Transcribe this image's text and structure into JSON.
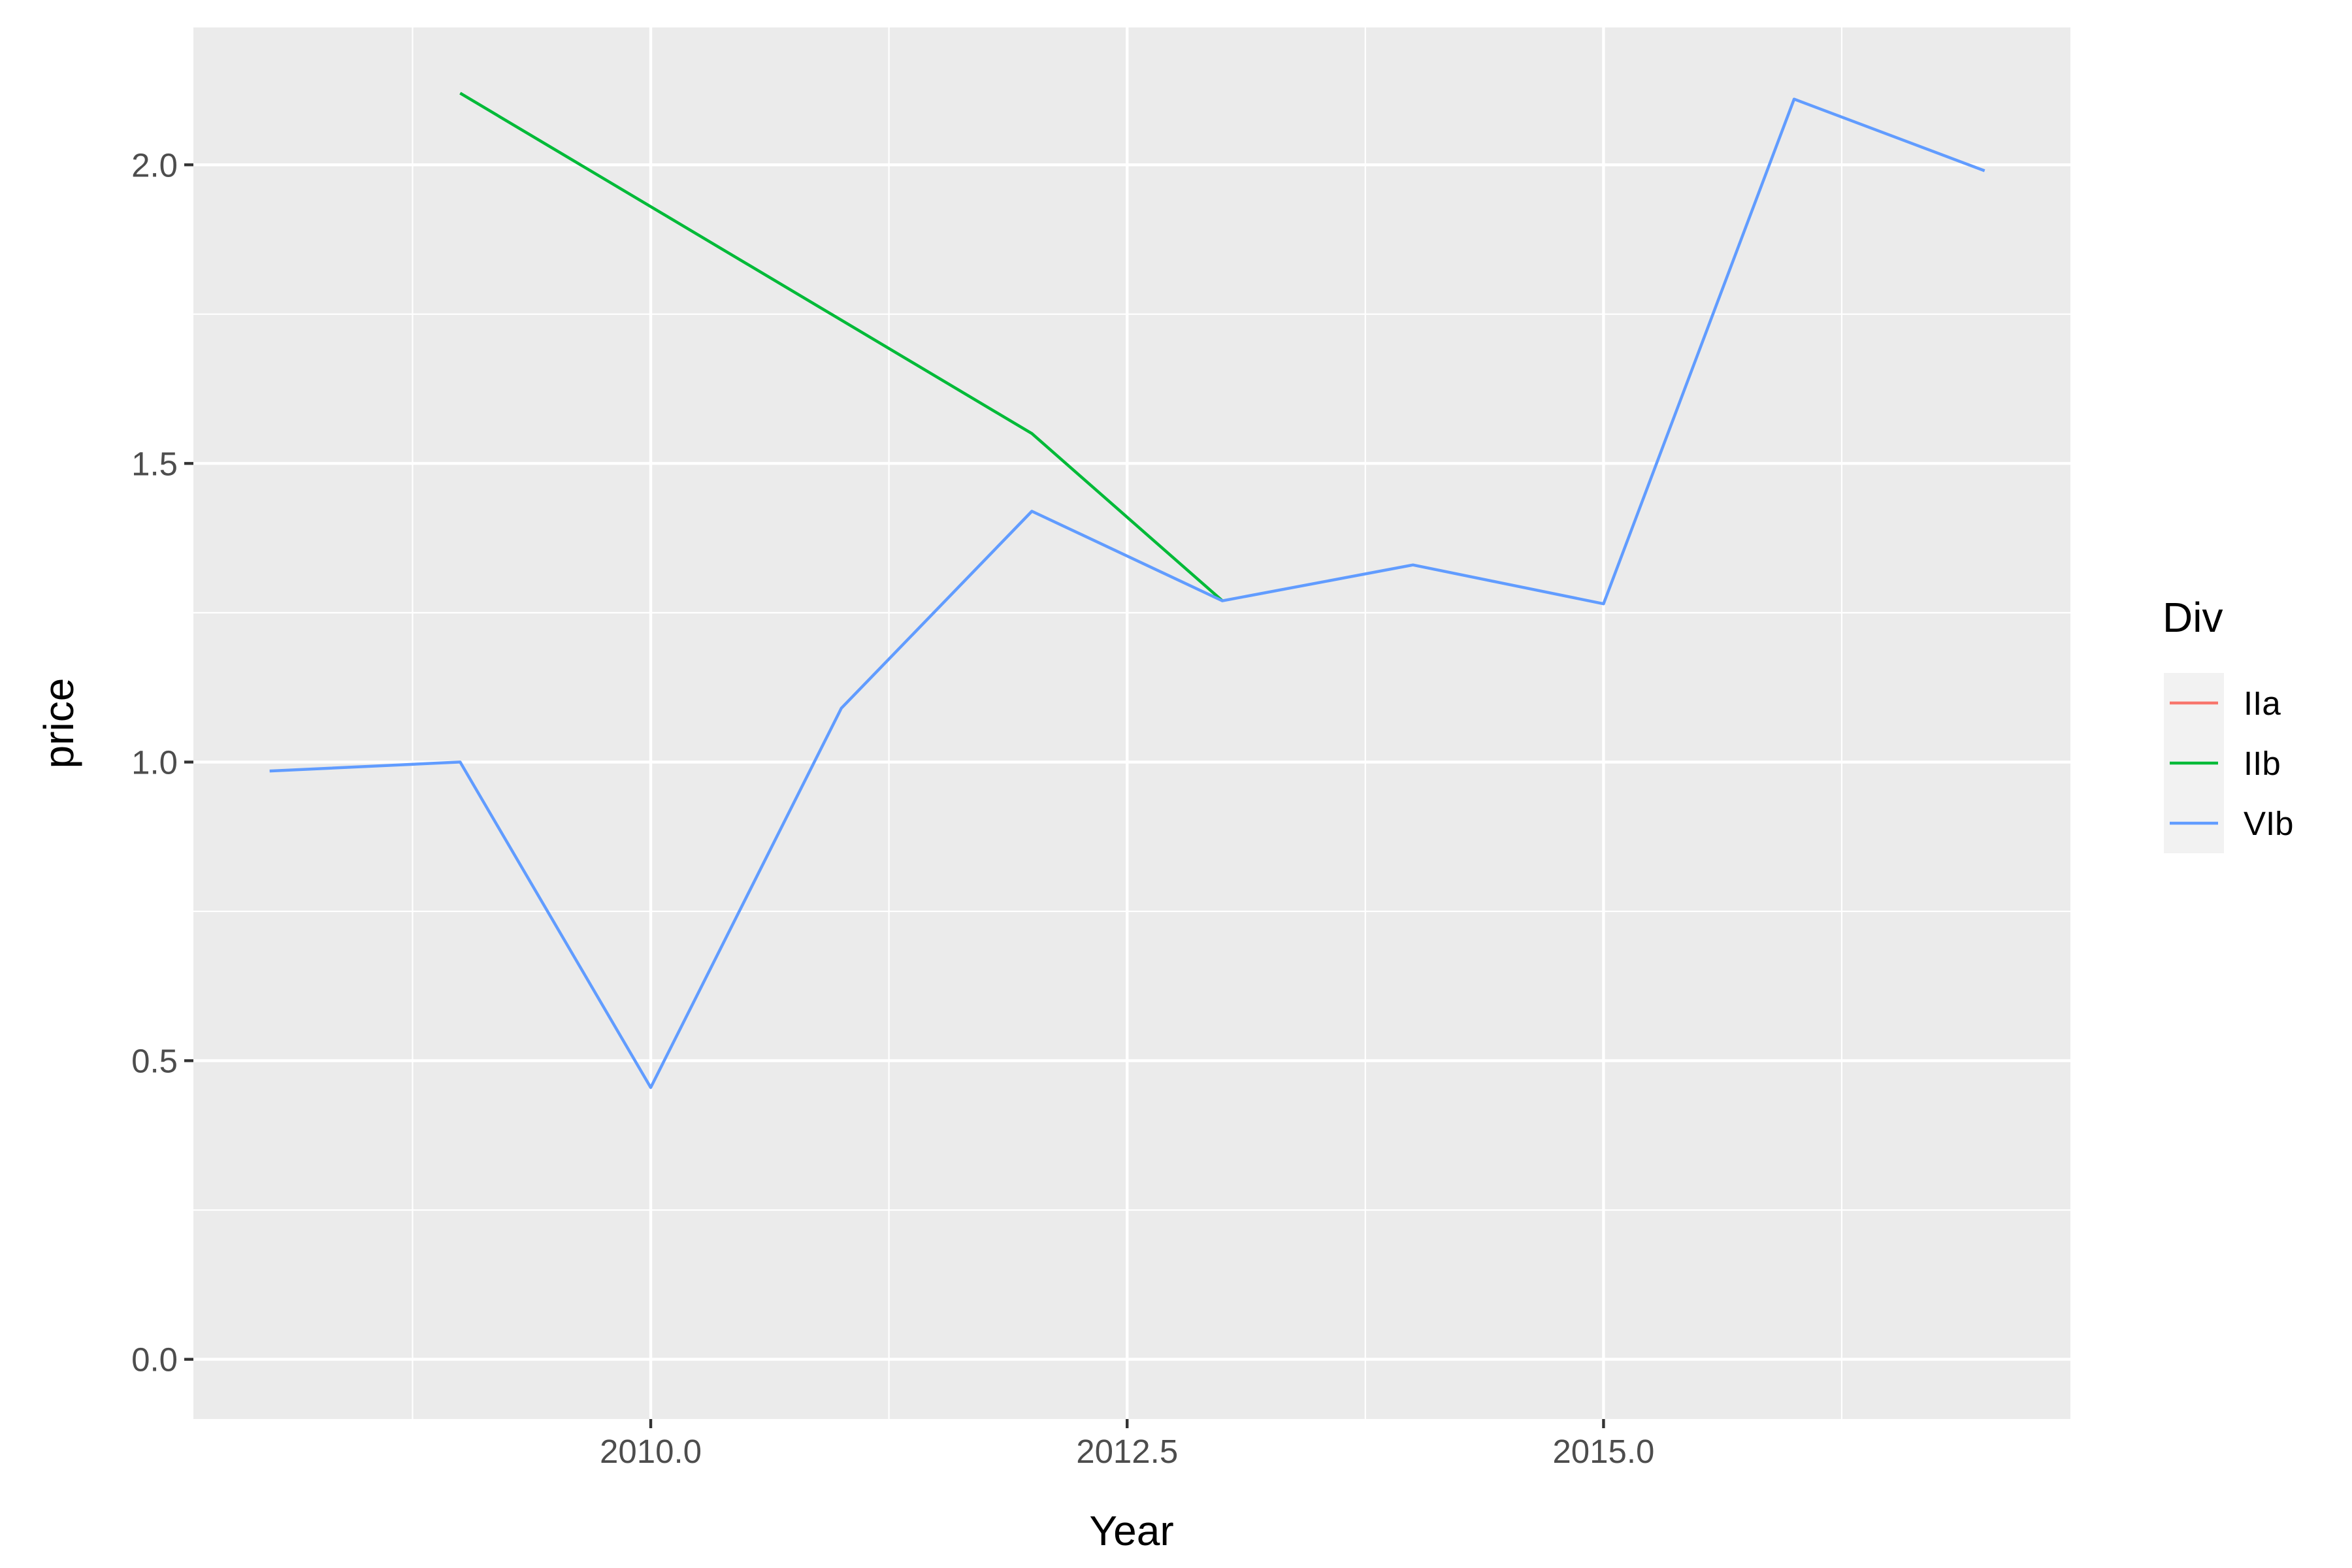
{
  "chart_data": {
    "type": "line",
    "title": "",
    "xlabel": "Year",
    "ylabel": "price",
    "xlim": [
      2007.6,
      2017.45
    ],
    "ylim": [
      -0.1,
      2.23
    ],
    "x_ticks": [
      2010.0,
      2012.5,
      2015.0
    ],
    "x_tick_labels": [
      "2010.0",
      "2012.5",
      "2015.0"
    ],
    "x_minor_ticks": [
      2008.75,
      2011.25,
      2013.75,
      2016.25
    ],
    "y_ticks": [
      0.0,
      0.5,
      1.0,
      1.5,
      2.0
    ],
    "y_tick_labels": [
      "0.0",
      "0.5",
      "1.0",
      "1.5",
      "2.0"
    ],
    "y_minor_ticks": [
      0.25,
      0.75,
      1.25,
      1.75
    ],
    "grid": true,
    "legend": {
      "title": "Div",
      "position": "right"
    },
    "series": [
      {
        "name": "IIa",
        "color": "#F8766D",
        "x": [],
        "y": []
      },
      {
        "name": "IIb",
        "color": "#00BA38",
        "x": [
          2009,
          2012,
          2013
        ],
        "y": [
          2.12,
          1.55,
          1.27
        ]
      },
      {
        "name": "VIb",
        "color": "#619CFF",
        "x": [
          2008,
          2009,
          2010,
          2011,
          2012,
          2013,
          2014,
          2015,
          2016,
          2017
        ],
        "y": [
          0.985,
          1.0,
          0.455,
          1.09,
          1.42,
          1.27,
          1.33,
          1.265,
          2.11,
          1.99
        ]
      }
    ]
  }
}
